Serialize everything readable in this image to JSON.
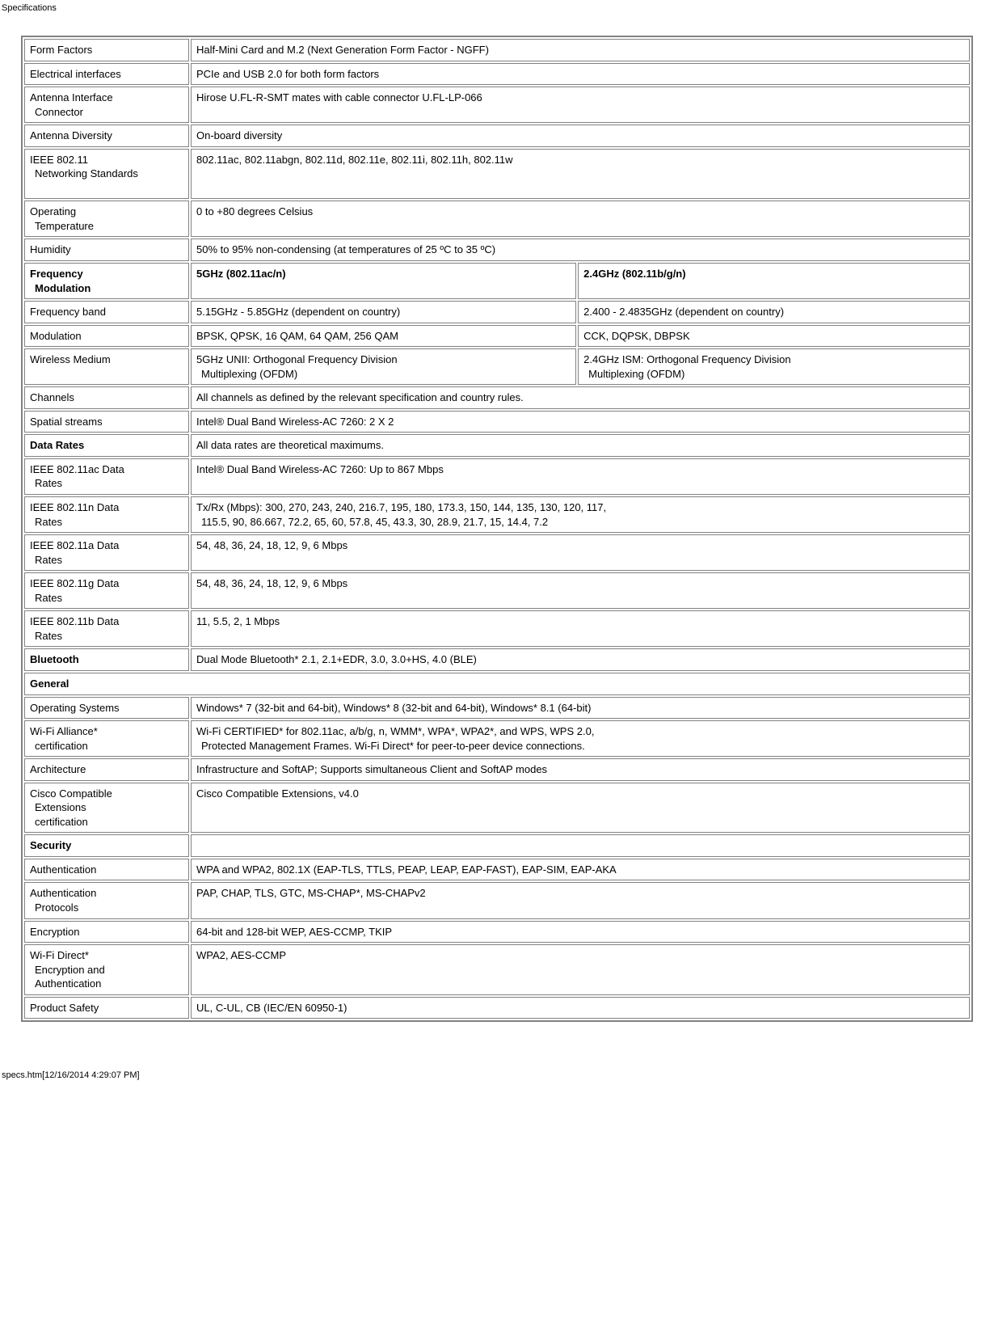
{
  "page": {
    "title": "Specifications",
    "footer": "specs.htm[12/16/2014 4:29:07 PM]"
  },
  "rows": {
    "form_factors": {
      "label": "Form Factors",
      "value": "Half-Mini Card and M.2 (Next Generation Form Factor - NGFF)"
    },
    "electrical_interfaces": {
      "label": "Electrical interfaces",
      "value": "PCIe and USB 2.0 for both form factors"
    },
    "antenna_interface": {
      "label_l1": "Antenna Interface",
      "label_l2": "Connector",
      "value": "Hirose U.FL-R-SMT mates with cable connector U.FL-LP-066"
    },
    "antenna_diversity": {
      "label": "Antenna Diversity",
      "value": "On-board diversity"
    },
    "ieee_standards": {
      "label_l1": "IEEE 802.11",
      "label_l2": "Networking Standards",
      "value": "802.11ac, 802.11abgn, 802.11d, 802.11e, 802.11i, 802.11h, 802.11w"
    },
    "operating_temp": {
      "label_l1": "Operating",
      "label_l2": "Temperature",
      "value": "0 to +80 degrees Celsius"
    },
    "humidity": {
      "label": "Humidity",
      "value": "50% to 95% non-condensing (at temperatures of 25 ºC to 35 ºC)"
    },
    "freq_mod_header": {
      "label_l1": "Frequency",
      "label_l2": "Modulation",
      "col5": "5GHz (802.11ac/n)",
      "col24": "2.4GHz (802.11b/g/n)"
    },
    "freq_band": {
      "label": "Frequency band",
      "col5": "5.15GHz - 5.85GHz (dependent on country)",
      "col24": "2.400 - 2.4835GHz (dependent on country)"
    },
    "modulation": {
      "label": "Modulation",
      "col5": "BPSK, QPSK, 16 QAM, 64 QAM, 256 QAM",
      "col24": "CCK, DQPSK, DBPSK"
    },
    "wireless_medium": {
      "label": "Wireless Medium",
      "col5_l1": "5GHz UNII: Orthogonal Frequency Division",
      "col5_l2": "Multiplexing (OFDM)",
      "col24_l1": "2.4GHz ISM: Orthogonal Frequency Division",
      "col24_l2": "Multiplexing (OFDM)"
    },
    "channels": {
      "label": "Channels",
      "value": "All channels as defined by the relevant specification and country rules."
    },
    "spatial_streams": {
      "label": "Spatial streams",
      "value": "Intel® Dual Band Wireless-AC 7260: 2 X 2"
    },
    "data_rates_header": {
      "label": "Data Rates",
      "value": "All data rates are theoretical maximums."
    },
    "ac_rates": {
      "label_l1": "IEEE 802.11ac Data",
      "label_l2": "Rates",
      "value": "Intel® Dual Band Wireless-AC 7260: Up to 867 Mbps"
    },
    "n_rates": {
      "label_l1": "IEEE 802.11n Data",
      "label_l2": "Rates",
      "value_l1": "Tx/Rx (Mbps): 300, 270, 243, 240, 216.7, 195, 180, 173.3, 150, 144, 135, 130, 120, 117,",
      "value_l2": "115.5, 90, 86.667, 72.2, 65, 60, 57.8, 45, 43.3, 30, 28.9, 21.7, 15, 14.4, 7.2"
    },
    "a_rates": {
      "label_l1": "IEEE 802.11a Data",
      "label_l2": "Rates",
      "value": "54, 48, 36, 24, 18, 12, 9, 6 Mbps"
    },
    "g_rates": {
      "label_l1": "IEEE 802.11g Data",
      "label_l2": "Rates",
      "value": "54, 48, 36, 24, 18, 12, 9, 6 Mbps"
    },
    "b_rates": {
      "label_l1": "IEEE 802.11b Data",
      "label_l2": "Rates",
      "value": "11, 5.5, 2, 1 Mbps"
    },
    "bluetooth": {
      "label": "Bluetooth",
      "value": "Dual Mode Bluetooth* 2.1, 2.1+EDR, 3.0, 3.0+HS, 4.0 (BLE)"
    },
    "general_header": {
      "label": "General"
    },
    "os": {
      "label": "Operating Systems",
      "value": "Windows* 7 (32-bit and 64-bit), Windows* 8 (32-bit and 64-bit), Windows* 8.1 (64-bit)"
    },
    "wifi_cert": {
      "label_l1": "Wi-Fi Alliance*",
      "label_l2": "certification",
      "value_l1": "Wi-Fi CERTIFIED* for 802.11ac, a/b/g, n, WMM*, WPA*, WPA2*, and WPS, WPS 2.0,",
      "value_l2": "Protected Management Frames. Wi-Fi Direct* for peer-to-peer device connections."
    },
    "architecture": {
      "label": "Architecture",
      "value": "Infrastructure and SoftAP; Supports simultaneous Client and SoftAP modes"
    },
    "cisco": {
      "label_l1": "Cisco Compatible",
      "label_l2": "Extensions",
      "label_l3": "certification",
      "value": "Cisco Compatible Extensions, v4.0"
    },
    "security_header": {
      "label": "Security"
    },
    "authentication": {
      "label": "Authentication",
      "value": "WPA and WPA2, 802.1X (EAP-TLS, TTLS, PEAP, LEAP, EAP-FAST), EAP-SIM, EAP-AKA"
    },
    "auth_protocols": {
      "label_l1": "Authentication",
      "label_l2": "Protocols",
      "value": "PAP, CHAP, TLS, GTC, MS-CHAP*, MS-CHAPv2"
    },
    "encryption": {
      "label": "Encryption",
      "value": "64-bit and 128-bit WEP, AES-CCMP, TKIP"
    },
    "wifi_direct": {
      "label_l1": "Wi-Fi Direct*",
      "label_l2": "Encryption and",
      "label_l3": "Authentication",
      "value": "WPA2, AES-CCMP"
    },
    "product_safety": {
      "label": "Product Safety",
      "value": "UL, C-UL, CB (IEC/EN 60950-1)"
    }
  }
}
